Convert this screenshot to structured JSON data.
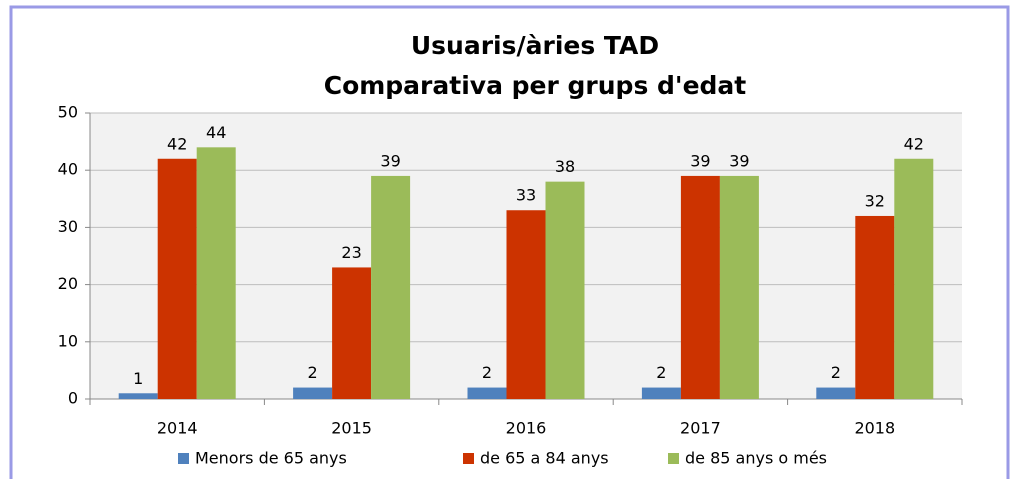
{
  "chart_data": {
    "type": "bar",
    "title": "Usuaris/àries TAD",
    "subtitle": "Comparativa per grups d'edat",
    "categories": [
      "2014",
      "2015",
      "2016",
      "2017",
      "2018"
    ],
    "series": [
      {
        "name": "Menors de 65 anys",
        "color": "#4f81bd",
        "values": [
          1,
          2,
          2,
          2,
          2
        ]
      },
      {
        "name": "de 65 a 84 anys",
        "color": "#cc3300",
        "values": [
          42,
          23,
          33,
          39,
          32
        ]
      },
      {
        "name": "de 85 anys o més",
        "color": "#9bbb59",
        "values": [
          44,
          39,
          38,
          39,
          42
        ]
      }
    ],
    "ylim": [
      0,
      50
    ],
    "yticks": [
      0,
      10,
      20,
      30,
      40,
      50
    ],
    "grid": true,
    "legend": "bottom"
  }
}
